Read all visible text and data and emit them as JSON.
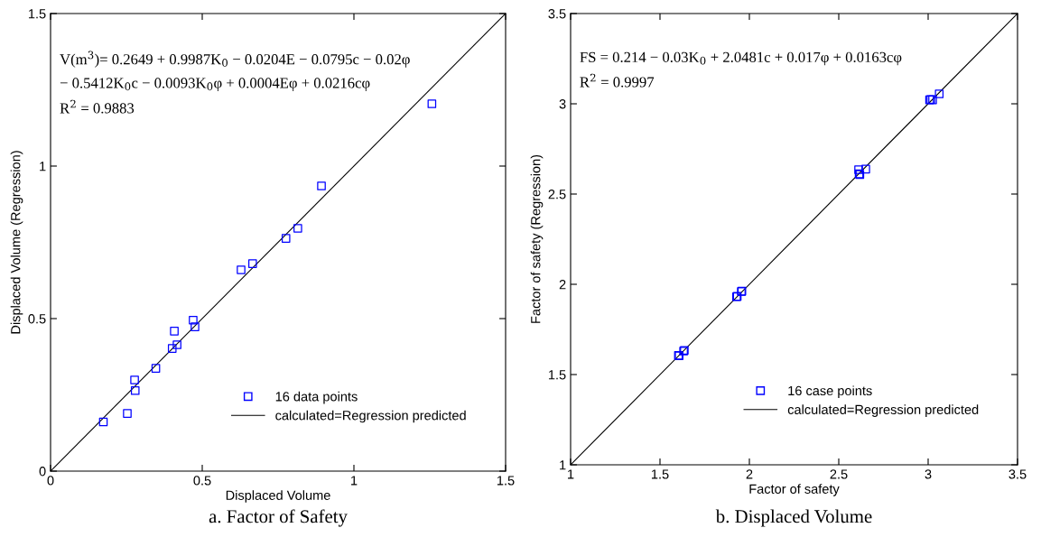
{
  "chart_data": [
    {
      "type": "scatter",
      "xlabel": "Displaced Volume",
      "ylabel": "Displaced Volume (Regression)",
      "xlim": [
        0,
        1.5
      ],
      "ylim": [
        0,
        1.5
      ],
      "xticks": [
        0,
        0.5,
        1,
        1.5
      ],
      "yticks": [
        0,
        0.5,
        1,
        1.5
      ],
      "grid": false,
      "legend": "bottom right",
      "annotations": [
        "V(m$^{3}$)= 0.2649 + 0.9987K$_{0}$ − 0.0204E − 0.0795c − 0.02φ",
        "− 0.5412K$_{0}$c − 0.0093K$_{0}$φ + 0.0004Eφ + 0.0216cφ",
        "R$^{2}$ = 0.9883",
        "a. Factor of Safety"
      ],
      "series": [
        {
          "name": "16 data points",
          "color": "#0000ff",
          "marker": "square",
          "x": [
            1.257,
            0.893,
            0.815,
            0.776,
            0.666,
            0.628,
            0.47,
            0.476,
            0.408,
            0.417,
            0.401,
            0.347,
            0.277,
            0.279,
            0.253,
            0.174
          ],
          "values": [
            1.204,
            0.935,
            0.796,
            0.763,
            0.68,
            0.66,
            0.495,
            0.473,
            0.459,
            0.414,
            0.402,
            0.337,
            0.299,
            0.264,
            0.189,
            0.161
          ]
        },
        {
          "name": "calculated=Regression predicted",
          "type": "line",
          "color": "#000000",
          "marker": "none",
          "line_style": "solid",
          "x": [
            0,
            1.5
          ],
          "values": [
            0,
            1.5
          ]
        }
      ]
    },
    {
      "type": "scatter",
      "xlabel": "Factor of safety",
      "ylabel": "Factor of safety (Regression)",
      "xlim": [
        1,
        3.5
      ],
      "ylim": [
        1,
        3.5
      ],
      "xticks": [
        1,
        1.5,
        2,
        2.5,
        3,
        3.5
      ],
      "yticks": [
        1,
        1.5,
        2,
        2.5,
        3,
        3.5
      ],
      "grid": false,
      "legend": "bottom right",
      "annotations": [
        "FS = 0.214 − 0.03K$_{0}$ + 2.0481c + 0.017φ + 0.0163cφ",
        "R$^{2}$ = 0.9997",
        "b. Displaced Volume"
      ],
      "series": [
        {
          "name": "16 case points",
          "color": "#0000ff",
          "marker": "square",
          "x": [
            3.008,
            3.025,
            3.062,
            3.015,
            2.611,
            2.651,
            2.618,
            2.614,
            1.928,
            1.958,
            1.932,
            1.955,
            1.603,
            1.636,
            1.607,
            1.632
          ],
          "values": [
            3.022,
            3.022,
            3.055,
            3.024,
            2.635,
            2.638,
            2.608,
            2.612,
            1.931,
            1.962,
            1.933,
            1.96,
            1.606,
            1.634,
            1.604,
            1.63
          ]
        },
        {
          "name": "calculated=Regression predicted",
          "type": "line",
          "color": "#000000",
          "marker": "none",
          "line_style": "solid",
          "x": [
            1,
            3.5
          ],
          "values": [
            1,
            3.5
          ]
        }
      ]
    }
  ]
}
